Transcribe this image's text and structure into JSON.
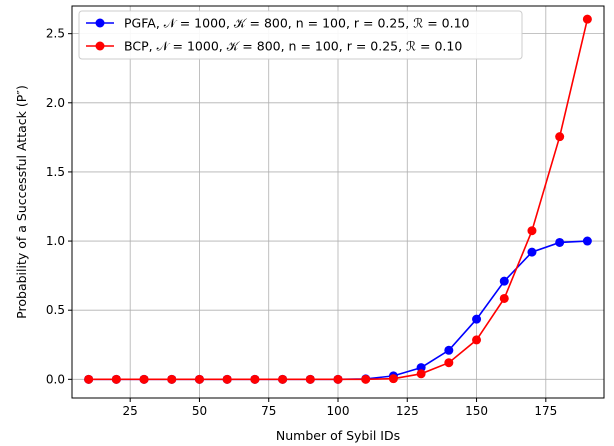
{
  "chart_data": {
    "type": "line",
    "xlabel": "Number of Sybil IDs",
    "ylabel": "Probability of a Successful Attack (P″)",
    "xlim": [
      4,
      196
    ],
    "ylim": [
      -0.135,
      2.7
    ],
    "xticks": [
      25,
      50,
      75,
      100,
      125,
      150,
      175
    ],
    "yticks": [
      0.0,
      0.5,
      1.0,
      1.5,
      2.0,
      2.5
    ],
    "xtick_labels": [
      "25",
      "50",
      "75",
      "100",
      "125",
      "150",
      "175"
    ],
    "ytick_labels": [
      "0.0",
      "0.5",
      "1.0",
      "1.5",
      "2.0",
      "2.5"
    ],
    "grid": true,
    "legend_position": "top-left",
    "x": [
      10,
      20,
      30,
      40,
      50,
      60,
      70,
      80,
      90,
      100,
      110,
      120,
      130,
      140,
      150,
      160,
      170,
      180,
      190
    ],
    "series": [
      {
        "name": "PGFA, 𝒩 = 1000, 𝒦 = 800, n = 100, r = 0.25, ℛ = 0.10",
        "color": "#0000ff",
        "values": [
          0,
          0,
          0,
          0,
          0,
          0,
          0,
          0,
          0,
          0,
          0.003,
          0.025,
          0.085,
          0.21,
          0.435,
          0.71,
          0.92,
          0.99,
          1.0
        ]
      },
      {
        "name": "BCP, 𝒩 = 1000, 𝒦 = 800, n = 100, r = 0.25, ℛ = 0.10",
        "color": "#ff0000",
        "values": [
          0,
          0,
          0,
          0,
          0,
          0,
          0,
          0,
          0,
          0,
          0.0,
          0.005,
          0.04,
          0.12,
          0.285,
          0.585,
          1.075,
          1.755,
          2.605
        ]
      }
    ]
  }
}
